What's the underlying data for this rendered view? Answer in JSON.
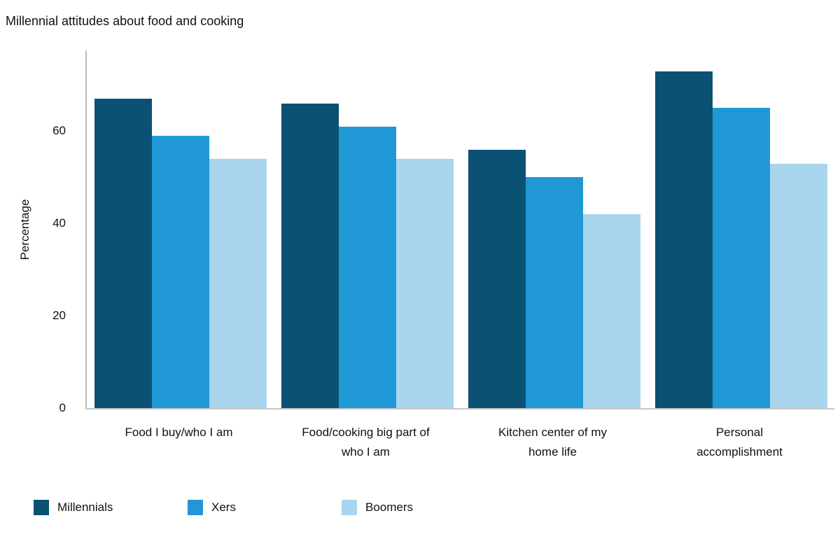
{
  "chart_data": {
    "type": "bar",
    "title": "Millennial attitudes about food and cooking",
    "xlabel": "",
    "ylabel": "Percentage",
    "categories": [
      "Food I buy/who I am",
      "Food/cooking big part of\nwho I am",
      "Kitchen center of my\nhome life",
      "Personal\naccomplishment"
    ],
    "series": [
      {
        "name": "Millennials",
        "color": "#0b5174",
        "values": [
          67,
          66,
          56,
          73
        ]
      },
      {
        "name": "Xers",
        "color": "#1f98d5",
        "values": [
          59,
          61,
          50,
          65
        ]
      },
      {
        "name": "Boomers",
        "color": "#a9d5ee",
        "values": [
          54,
          54,
          42,
          53
        ]
      }
    ],
    "yticks": [
      0,
      20,
      40,
      60
    ],
    "ylim": [
      0,
      77.5
    ],
    "grid": false,
    "legend_position": "bottom-left"
  }
}
